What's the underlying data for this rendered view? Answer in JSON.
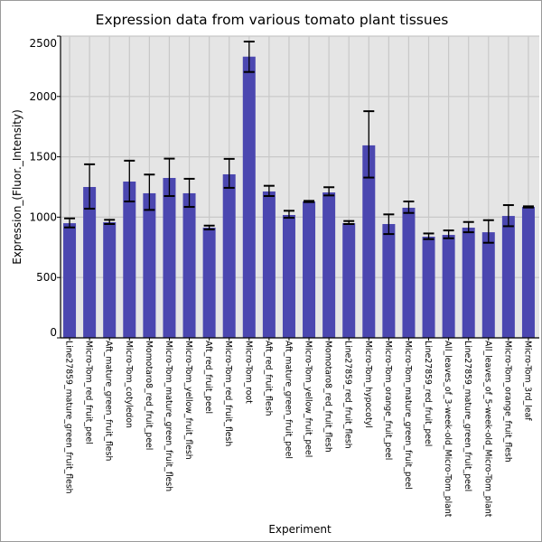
{
  "chart_data": {
    "type": "bar",
    "title": "Expression data from various tomato plant tissues",
    "xlabel": "Experiment",
    "ylabel": "Expression_(Fluor._Intensity)",
    "ylim": [
      0,
      2500
    ],
    "yticks": [
      0,
      500,
      1000,
      1500,
      2000,
      2500
    ],
    "grid": true,
    "bar_color": "#4b47b0",
    "background_color": "#e5e5e5",
    "categories": [
      "Line27859_mature_green_fruit_flesh",
      "Micro-Tom_red_fruit_peel",
      "Aft_mature_green_fruit_flesh",
      "Micro-Tom_cotyledon",
      "Momotaro8_red_fruit_peel",
      "Micro-Tom_mature_green_fruit_flesh",
      "Micro-Tom_yellow_fruit_flesh",
      "Aft_red_fruit_peel",
      "Micro-Tom_red_fruit_flesh",
      "Micro-Tom_root",
      "Aft_red_fruit_flesh",
      "Aft_mature_green_fruit_peel",
      "Micro-Tom_yellow_fruit_peel",
      "Momotaro8_red_fruit_flesh",
      "Line27859_red_fruit_flesh",
      "Micro-Tom_hypocotyl",
      "Micro-Tom_orange_fruit_peel",
      "Micro-Tom_mature_green_fruit_peel",
      "Line27859_red_fruit_peel",
      "All_leaves_of_3-week-old_Micro-Tom_plant",
      "Line27859_mature_green_fruit_peel",
      "All_leaves_of_5-week-old_Micro-Tom_plant",
      "Micro-Tom_orange_fruit_flesh",
      "Micro-Tom_3rd_leaf"
    ],
    "values": [
      950,
      1250,
      958,
      1295,
      1198,
      1325,
      1198,
      913,
      1355,
      2330,
      1213,
      1018,
      1130,
      1205,
      950,
      1595,
      943,
      1078,
      838,
      853,
      913,
      875,
      1010,
      1085
    ],
    "error_low": [
      915,
      1070,
      943,
      1130,
      1060,
      1175,
      1085,
      898,
      1243,
      2203,
      1175,
      995,
      1125,
      1180,
      943,
      1328,
      860,
      1035,
      818,
      825,
      875,
      788,
      925,
      1080
    ],
    "error_high": [
      990,
      1438,
      978,
      1468,
      1353,
      1485,
      1318,
      930,
      1483,
      2455,
      1260,
      1053,
      1135,
      1248,
      968,
      1878,
      1023,
      1130,
      865,
      890,
      960,
      975,
      1100,
      1090
    ]
  }
}
